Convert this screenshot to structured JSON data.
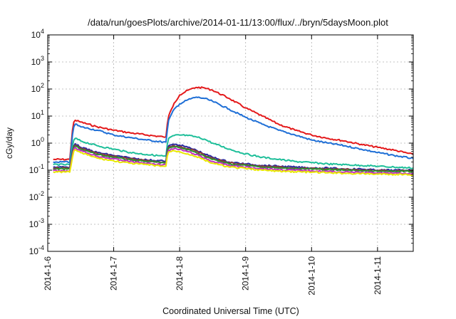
{
  "chart_data": {
    "type": "line",
    "title": "/data/run/goesPlots/archive/2014-01-11/13:00/flux/../bryn/5daysMoon.plot",
    "xlabel": "Coordinated Universal Time (UTC)",
    "ylabel": "cGy/day",
    "y_scale": "log",
    "ylim": [
      0.0001,
      10000
    ],
    "y_ticks": [
      {
        "base": "10",
        "exp": "-4",
        "value": 0.0001
      },
      {
        "base": "10",
        "exp": "-3",
        "value": 0.001
      },
      {
        "base": "10",
        "exp": "-2",
        "value": 0.01
      },
      {
        "base": "10",
        "exp": "-1",
        "value": 0.1
      },
      {
        "base": "10",
        "exp": "0",
        "value": 1
      },
      {
        "base": "10",
        "exp": "1",
        "value": 10
      },
      {
        "base": "10",
        "exp": "2",
        "value": 100
      },
      {
        "base": "10",
        "exp": "3",
        "value": 1000
      },
      {
        "base": "10",
        "exp": "4",
        "value": 10000
      }
    ],
    "xlim": [
      "2014-01-06T00:00",
      "2014-01-11T13:00"
    ],
    "x_ticks": [
      "2014-1-6",
      "2014-1-7",
      "2014-1-8",
      "2014-1-9",
      "2014-1-10",
      "2014-1-11"
    ],
    "grid": true,
    "x": [
      "2014-01-06T02:00",
      "2014-01-06T08:00",
      "2014-01-06T09:00",
      "2014-01-06T09:30",
      "2014-01-06T10:00",
      "2014-01-06T12:00",
      "2014-01-06T18:00",
      "2014-01-07T00:00",
      "2014-01-07T06:00",
      "2014-01-07T12:00",
      "2014-01-07T18:00",
      "2014-01-07T19:00",
      "2014-01-07T19:30",
      "2014-01-07T20:00",
      "2014-01-07T22:00",
      "2014-01-08T00:00",
      "2014-01-08T03:00",
      "2014-01-08T06:00",
      "2014-01-08T09:00",
      "2014-01-08T12:00",
      "2014-01-08T18:00",
      "2014-01-09T00:00",
      "2014-01-09T06:00",
      "2014-01-09T12:00",
      "2014-01-09T18:00",
      "2014-01-10T00:00",
      "2014-01-10T06:00",
      "2014-01-10T12:00",
      "2014-01-10T18:00",
      "2014-01-11T00:00",
      "2014-01-11T06:00",
      "2014-01-11T13:00"
    ],
    "series": [
      {
        "color": "#e41a1c",
        "values": [
          0.25,
          0.25,
          3,
          6,
          7,
          6,
          4,
          3,
          2.4,
          2,
          1.7,
          1.7,
          5,
          10,
          30,
          60,
          90,
          115,
          110,
          90,
          45,
          20,
          10,
          5,
          3,
          2,
          1.5,
          1.2,
          0.9,
          0.7,
          0.55,
          0.38
        ]
      },
      {
        "color": "#1f6fd6",
        "values": [
          0.2,
          0.2,
          2,
          4,
          5,
          4,
          3,
          2,
          1.6,
          1.3,
          1.1,
          1.1,
          3,
          7,
          18,
          28,
          40,
          50,
          45,
          35,
          18,
          9,
          5,
          3,
          2,
          1.3,
          1.0,
          0.8,
          0.6,
          0.45,
          0.35,
          0.27
        ]
      },
      {
        "color": "#1fbf9a",
        "values": [
          0.16,
          0.16,
          0.8,
          1.3,
          1.5,
          1.2,
          0.8,
          0.6,
          0.45,
          0.38,
          0.33,
          0.33,
          0.9,
          1.5,
          1.9,
          2.0,
          1.9,
          1.7,
          1.4,
          1.0,
          0.6,
          0.4,
          0.3,
          0.25,
          0.21,
          0.19,
          0.17,
          0.16,
          0.15,
          0.14,
          0.13,
          0.12
        ]
      },
      {
        "color": "#2a2aa0",
        "values": [
          0.13,
          0.13,
          0.5,
          0.8,
          0.95,
          0.7,
          0.45,
          0.35,
          0.28,
          0.24,
          0.22,
          0.22,
          0.55,
          0.8,
          0.9,
          0.85,
          0.7,
          0.55,
          0.4,
          0.3,
          0.2,
          0.17,
          0.15,
          0.14,
          0.13,
          0.12,
          0.12,
          0.11,
          0.11,
          0.1,
          0.1,
          0.1
        ]
      },
      {
        "color": "#8b3a3a",
        "values": [
          0.12,
          0.12,
          0.45,
          0.75,
          0.85,
          0.65,
          0.42,
          0.32,
          0.26,
          0.22,
          0.2,
          0.2,
          0.5,
          0.7,
          0.8,
          0.75,
          0.62,
          0.5,
          0.36,
          0.27,
          0.19,
          0.16,
          0.14,
          0.13,
          0.12,
          0.115,
          0.11,
          0.105,
          0.1,
          0.095,
          0.095,
          0.095
        ]
      },
      {
        "color": "#2f8f2f",
        "values": [
          0.11,
          0.11,
          0.4,
          0.68,
          0.78,
          0.6,
          0.38,
          0.3,
          0.24,
          0.21,
          0.19,
          0.19,
          0.45,
          0.65,
          0.72,
          0.68,
          0.57,
          0.45,
          0.33,
          0.25,
          0.17,
          0.15,
          0.13,
          0.12,
          0.115,
          0.11,
          0.105,
          0.1,
          0.095,
          0.09,
          0.09,
          0.09
        ]
      },
      {
        "color": "#c030c0",
        "values": [
          0.095,
          0.095,
          0.35,
          0.6,
          0.7,
          0.52,
          0.33,
          0.26,
          0.21,
          0.18,
          0.16,
          0.16,
          0.38,
          0.55,
          0.62,
          0.58,
          0.48,
          0.38,
          0.28,
          0.21,
          0.15,
          0.13,
          0.115,
          0.105,
          0.1,
          0.095,
          0.09,
          0.085,
          0.082,
          0.08,
          0.078,
          0.076
        ]
      },
      {
        "color": "#e8e800",
        "values": [
          0.085,
          0.085,
          0.3,
          0.5,
          0.58,
          0.44,
          0.28,
          0.22,
          0.18,
          0.16,
          0.14,
          0.14,
          0.33,
          0.47,
          0.52,
          0.48,
          0.4,
          0.32,
          0.24,
          0.18,
          0.13,
          0.115,
          0.1,
          0.092,
          0.088,
          0.084,
          0.08,
          0.077,
          0.074,
          0.072,
          0.07,
          0.068
        ]
      }
    ]
  }
}
